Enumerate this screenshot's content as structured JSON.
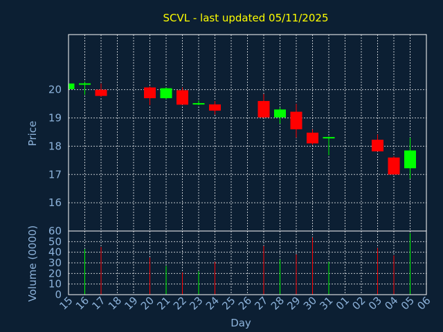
{
  "chart_data": {
    "type": "candlestick",
    "title": "SCVL - last updated 05/11/2025",
    "xlabel": "Day",
    "price_ylabel": "Price",
    "volume_ylabel": "Volume (0000)",
    "x_ticks": [
      "15",
      "16",
      "17",
      "18",
      "19",
      "20",
      "21",
      "22",
      "23",
      "24",
      "25",
      "26",
      "27",
      "28",
      "29",
      "30",
      "31",
      "01",
      "02",
      "03",
      "04",
      "05",
      "06"
    ],
    "price_ylim": [
      15.0,
      21.95
    ],
    "price_ticks": [
      16,
      17,
      18,
      19,
      20
    ],
    "volume_ylim": [
      0,
      60
    ],
    "volume_ticks": [
      0,
      10,
      20,
      30,
      40,
      50,
      60
    ],
    "candles": [
      {
        "day": "15",
        "open": 20.02,
        "high": 20.25,
        "low": 20.0,
        "close": 20.22,
        "volume": 5
      },
      {
        "day": "16",
        "open": 20.2,
        "high": 20.28,
        "low": 19.82,
        "close": 20.2,
        "volume": 43
      },
      {
        "day": "17",
        "open": 20.0,
        "high": 20.22,
        "low": 19.75,
        "close": 19.78,
        "volume": 45
      },
      {
        "day": "20",
        "open": 20.08,
        "high": 20.12,
        "low": 19.45,
        "close": 19.7,
        "volume": 35
      },
      {
        "day": "21",
        "open": 19.7,
        "high": 20.08,
        "low": 19.66,
        "close": 20.05,
        "volume": 27
      },
      {
        "day": "22",
        "open": 19.98,
        "high": 20.08,
        "low": 19.47,
        "close": 19.47,
        "volume": 21
      },
      {
        "day": "23",
        "open": 19.5,
        "high": 19.62,
        "low": 19.45,
        "close": 19.5,
        "volume": 22
      },
      {
        "day": "24",
        "open": 19.48,
        "high": 19.6,
        "low": 19.12,
        "close": 19.26,
        "volume": 31
      },
      {
        "day": "27",
        "open": 19.6,
        "high": 19.85,
        "low": 19.0,
        "close": 19.02,
        "volume": 46
      },
      {
        "day": "28",
        "open": 19.02,
        "high": 19.37,
        "low": 18.8,
        "close": 19.3,
        "volume": 33
      },
      {
        "day": "29",
        "open": 19.22,
        "high": 19.5,
        "low": 18.3,
        "close": 18.6,
        "volume": 38
      },
      {
        "day": "30",
        "open": 18.48,
        "high": 18.6,
        "low": 18.05,
        "close": 18.1,
        "volume": 54
      },
      {
        "day": "31",
        "open": 18.3,
        "high": 18.35,
        "low": 17.68,
        "close": 18.3,
        "volume": 31
      },
      {
        "day": "03",
        "open": 18.23,
        "high": 18.42,
        "low": 17.82,
        "close": 17.82,
        "volume": 44
      },
      {
        "day": "04",
        "open": 17.6,
        "high": 17.65,
        "low": 17.0,
        "close": 17.0,
        "volume": 37
      },
      {
        "day": "05",
        "open": 17.22,
        "high": 18.3,
        "low": 16.85,
        "close": 17.85,
        "volume": 58
      }
    ],
    "up_color": "#00ff00",
    "down_color": "#ff0000",
    "grid": true
  },
  "colors": {
    "background": "#0c1f33",
    "frame": "#ffffff",
    "title": "#ffff00",
    "axis_text": "#8db3db",
    "grid": "#ffffff"
  }
}
